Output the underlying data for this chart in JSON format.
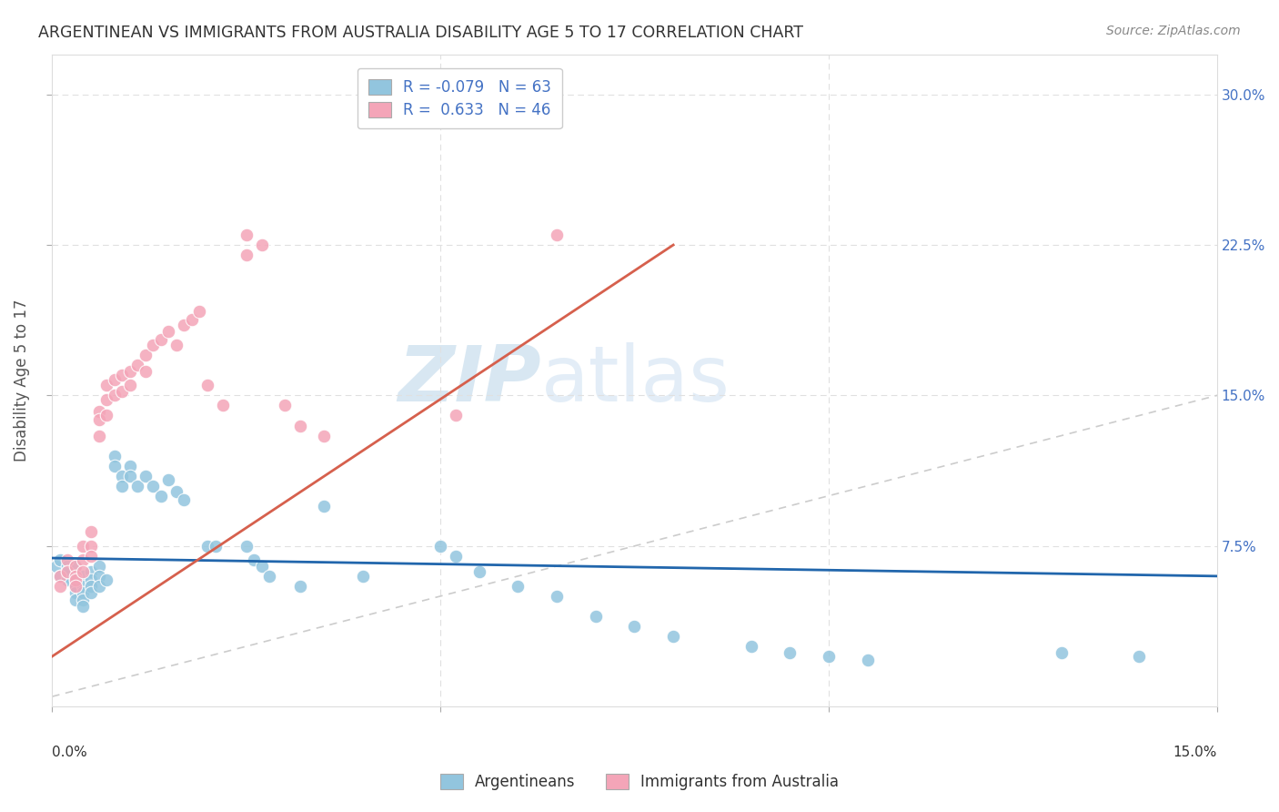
{
  "title": "ARGENTINEAN VS IMMIGRANTS FROM AUSTRALIA DISABILITY AGE 5 TO 17 CORRELATION CHART",
  "source": "Source: ZipAtlas.com",
  "ylabel": "Disability Age 5 to 17",
  "xlim": [
    0.0,
    0.15
  ],
  "ylim": [
    -0.005,
    0.32
  ],
  "blue_R": -0.079,
  "blue_N": 63,
  "pink_R": 0.633,
  "pink_N": 46,
  "blue_color": "#92c5de",
  "pink_color": "#f4a5b8",
  "blue_line_color": "#2166ac",
  "pink_line_color": "#d6604d",
  "diagonal_color": "#cccccc",
  "background_color": "#ffffff",
  "watermark_zip": "ZIP",
  "watermark_atlas": "atlas",
  "legend_labels": [
    "Argentineans",
    "Immigrants from Australia"
  ],
  "blue_x": [
    0.0005,
    0.001,
    0.001,
    0.002,
    0.002,
    0.002,
    0.002,
    0.003,
    0.003,
    0.003,
    0.003,
    0.003,
    0.003,
    0.003,
    0.004,
    0.004,
    0.004,
    0.004,
    0.004,
    0.005,
    0.005,
    0.005,
    0.005,
    0.006,
    0.006,
    0.006,
    0.007,
    0.008,
    0.008,
    0.009,
    0.009,
    0.01,
    0.01,
    0.011,
    0.012,
    0.013,
    0.014,
    0.015,
    0.016,
    0.017,
    0.02,
    0.021,
    0.025,
    0.026,
    0.027,
    0.028,
    0.032,
    0.035,
    0.04,
    0.05,
    0.052,
    0.055,
    0.06,
    0.065,
    0.07,
    0.075,
    0.08,
    0.09,
    0.095,
    0.1,
    0.105,
    0.13,
    0.14
  ],
  "blue_y": [
    0.065,
    0.06,
    0.068,
    0.065,
    0.06,
    0.058,
    0.062,
    0.065,
    0.055,
    0.06,
    0.058,
    0.055,
    0.052,
    0.048,
    0.06,
    0.055,
    0.052,
    0.048,
    0.045,
    0.062,
    0.058,
    0.055,
    0.052,
    0.065,
    0.06,
    0.055,
    0.058,
    0.12,
    0.115,
    0.11,
    0.105,
    0.115,
    0.11,
    0.105,
    0.11,
    0.105,
    0.1,
    0.108,
    0.102,
    0.098,
    0.075,
    0.075,
    0.075,
    0.068,
    0.065,
    0.06,
    0.055,
    0.095,
    0.06,
    0.075,
    0.07,
    0.062,
    0.055,
    0.05,
    0.04,
    0.035,
    0.03,
    0.025,
    0.022,
    0.02,
    0.018,
    0.022,
    0.02
  ],
  "pink_x": [
    0.001,
    0.001,
    0.002,
    0.002,
    0.003,
    0.003,
    0.003,
    0.003,
    0.004,
    0.004,
    0.004,
    0.005,
    0.005,
    0.005,
    0.006,
    0.006,
    0.006,
    0.007,
    0.007,
    0.007,
    0.008,
    0.008,
    0.009,
    0.009,
    0.01,
    0.01,
    0.011,
    0.012,
    0.012,
    0.013,
    0.014,
    0.015,
    0.016,
    0.017,
    0.018,
    0.019,
    0.02,
    0.022,
    0.025,
    0.025,
    0.027,
    0.03,
    0.032,
    0.035,
    0.052,
    0.065
  ],
  "pink_y": [
    0.06,
    0.055,
    0.068,
    0.062,
    0.065,
    0.06,
    0.058,
    0.055,
    0.075,
    0.068,
    0.062,
    0.082,
    0.075,
    0.07,
    0.142,
    0.138,
    0.13,
    0.155,
    0.148,
    0.14,
    0.158,
    0.15,
    0.16,
    0.152,
    0.162,
    0.155,
    0.165,
    0.17,
    0.162,
    0.175,
    0.178,
    0.182,
    0.175,
    0.185,
    0.188,
    0.192,
    0.155,
    0.145,
    0.23,
    0.22,
    0.225,
    0.145,
    0.135,
    0.13,
    0.14,
    0.23
  ],
  "blue_trend": [
    0.0,
    0.15,
    0.069,
    0.06
  ],
  "pink_trend": [
    0.0,
    0.08,
    0.02,
    0.225
  ]
}
